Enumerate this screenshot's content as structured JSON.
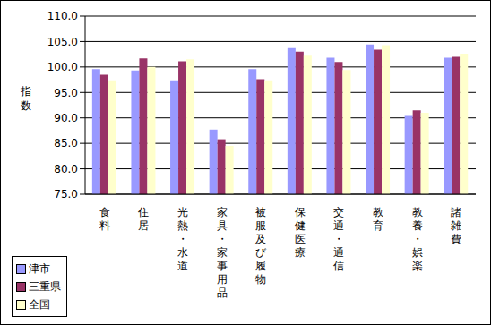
{
  "chart_data": {
    "type": "bar",
    "y_label": "指数",
    "categories": [
      "食料",
      "住居",
      "光熱・水道",
      "家具・家事用品",
      "被服及び履物",
      "保健医療",
      "交通・通信",
      "教育",
      "教養・娯楽",
      "諸雑費"
    ],
    "series": [
      {
        "name": "津市",
        "color": "#9999ff",
        "values": [
          99.6,
          99.3,
          97.4,
          87.7,
          99.6,
          103.7,
          101.8,
          104.4,
          90.4,
          101.8
        ]
      },
      {
        "name": "三重県",
        "color": "#993366",
        "values": [
          98.5,
          101.7,
          101.1,
          85.8,
          97.6,
          103.0,
          101.0,
          103.4,
          91.5,
          102.0
        ]
      },
      {
        "name": "全国",
        "color": "#ffffcc",
        "values": [
          97.4,
          100.0,
          101.5,
          84.5,
          97.4,
          102.4,
          99.4,
          104.3,
          91.0,
          102.6
        ]
      }
    ],
    "ylim": [
      75,
      110
    ],
    "yticks": [
      {
        "value": 75,
        "label": "75.0"
      },
      {
        "value": 80,
        "label": "80.0"
      },
      {
        "value": 85,
        "label": "85.0"
      },
      {
        "value": 90,
        "label": "90.0"
      },
      {
        "value": 95,
        "label": "95.0"
      },
      {
        "value": 100,
        "label": "100.0"
      },
      {
        "value": 105,
        "label": "105.0"
      },
      {
        "value": 110,
        "label": "110.0"
      }
    ],
    "grid": true,
    "legend": "lower left"
  }
}
